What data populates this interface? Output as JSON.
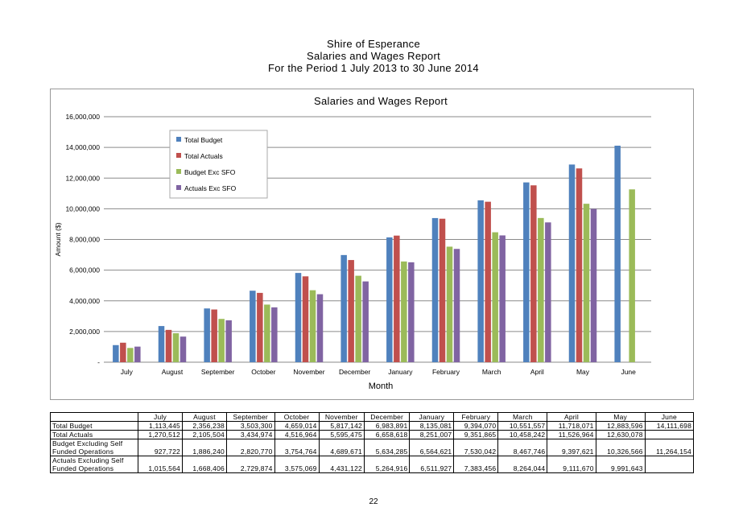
{
  "report": {
    "title_line1": "Shire of Esperance",
    "title_line2": "Salaries and Wages Report",
    "title_line3": "For the Period  1 July 2013 to 30 June 2014"
  },
  "chart_data": {
    "type": "bar",
    "title": "Salaries and Wages Report",
    "xlabel": "Month",
    "ylabel": "Amount ($)",
    "ylim": [
      0,
      16000000
    ],
    "yticks": [
      0,
      2000000,
      4000000,
      6000000,
      8000000,
      10000000,
      12000000,
      14000000,
      16000000
    ],
    "ytick_labels": [
      "-",
      "2,000,000",
      "4,000,000",
      "6,000,000",
      "8,000,000",
      "10,000,000",
      "12,000,000",
      "14,000,000",
      "16,000,000"
    ],
    "grid": true,
    "legend_position": "top-left",
    "categories": [
      "July",
      "August",
      "September",
      "October",
      "November",
      "December",
      "January",
      "February",
      "March",
      "April",
      "May",
      "June"
    ],
    "series": [
      {
        "name": "Total Budget",
        "color": "#4f81bd",
        "values": [
          1113445,
          2356238,
          3503300,
          4659014,
          5817142,
          6983891,
          8135081,
          9394070,
          10551557,
          11718071,
          12883596,
          14111698
        ]
      },
      {
        "name": "Total Actuals",
        "color": "#c0504d",
        "values": [
          1270512,
          2105504,
          3434974,
          4516964,
          5595475,
          6658618,
          8251007,
          9351865,
          10458242,
          11526964,
          12630078,
          null
        ]
      },
      {
        "name": "Budget Exc SFO",
        "color": "#9bbb59",
        "values": [
          927722,
          1886240,
          2820770,
          3754764,
          4689671,
          5634285,
          6564621,
          7530042,
          8467746,
          9397621,
          10326566,
          11264154
        ]
      },
      {
        "name": "Actuals Exc SFO",
        "color": "#8064a2",
        "values": [
          1015564,
          1668406,
          2729874,
          3575069,
          4431122,
          5264916,
          6511927,
          7383456,
          8264044,
          9111670,
          9991643,
          null
        ]
      }
    ]
  },
  "table": {
    "headers": [
      "",
      "July",
      "August",
      "September",
      "October",
      "November",
      "December",
      "January",
      "February",
      "March",
      "April",
      "May",
      "June"
    ],
    "rows": [
      {
        "label_line1": "Total Budget",
        "label_line2": "",
        "cells": [
          "1,113,445",
          "2,356,238",
          "3,503,300",
          "4,659,014",
          "5,817,142",
          "6,983,891",
          "8,135,081",
          "9,394,070",
          "10,551,557",
          "11,718,071",
          "12,883,596",
          "14,111,698"
        ]
      },
      {
        "label_line1": "Total Actuals",
        "label_line2": "",
        "cells": [
          "1,270,512",
          "2,105,504",
          "3,434,974",
          "4,516,964",
          "5,595,475",
          "6,658,618",
          "8,251,007",
          "9,351,865",
          "10,458,242",
          "11,526,964",
          "12,630,078",
          ""
        ]
      },
      {
        "label_line1": "Budget Excluding Self",
        "label_line2": "Funded Operations",
        "cells": [
          "927,722",
          "1,886,240",
          "2,820,770",
          "3,754,764",
          "4,689,671",
          "5,634,285",
          "6,564,621",
          "7,530,042",
          "8,467,746",
          "9,397,621",
          "10,326,566",
          "11,264,154"
        ]
      },
      {
        "label_line1": "Actuals Excluding Self",
        "label_line2": "Funded Operations",
        "cells": [
          "1,015,564",
          "1,668,406",
          "2,729,874",
          "3,575,069",
          "4,431,122",
          "5,264,916",
          "6,511,927",
          "7,383,456",
          "8,264,044",
          "9,111,670",
          "9,991,643",
          ""
        ]
      }
    ]
  },
  "page_number": "22"
}
